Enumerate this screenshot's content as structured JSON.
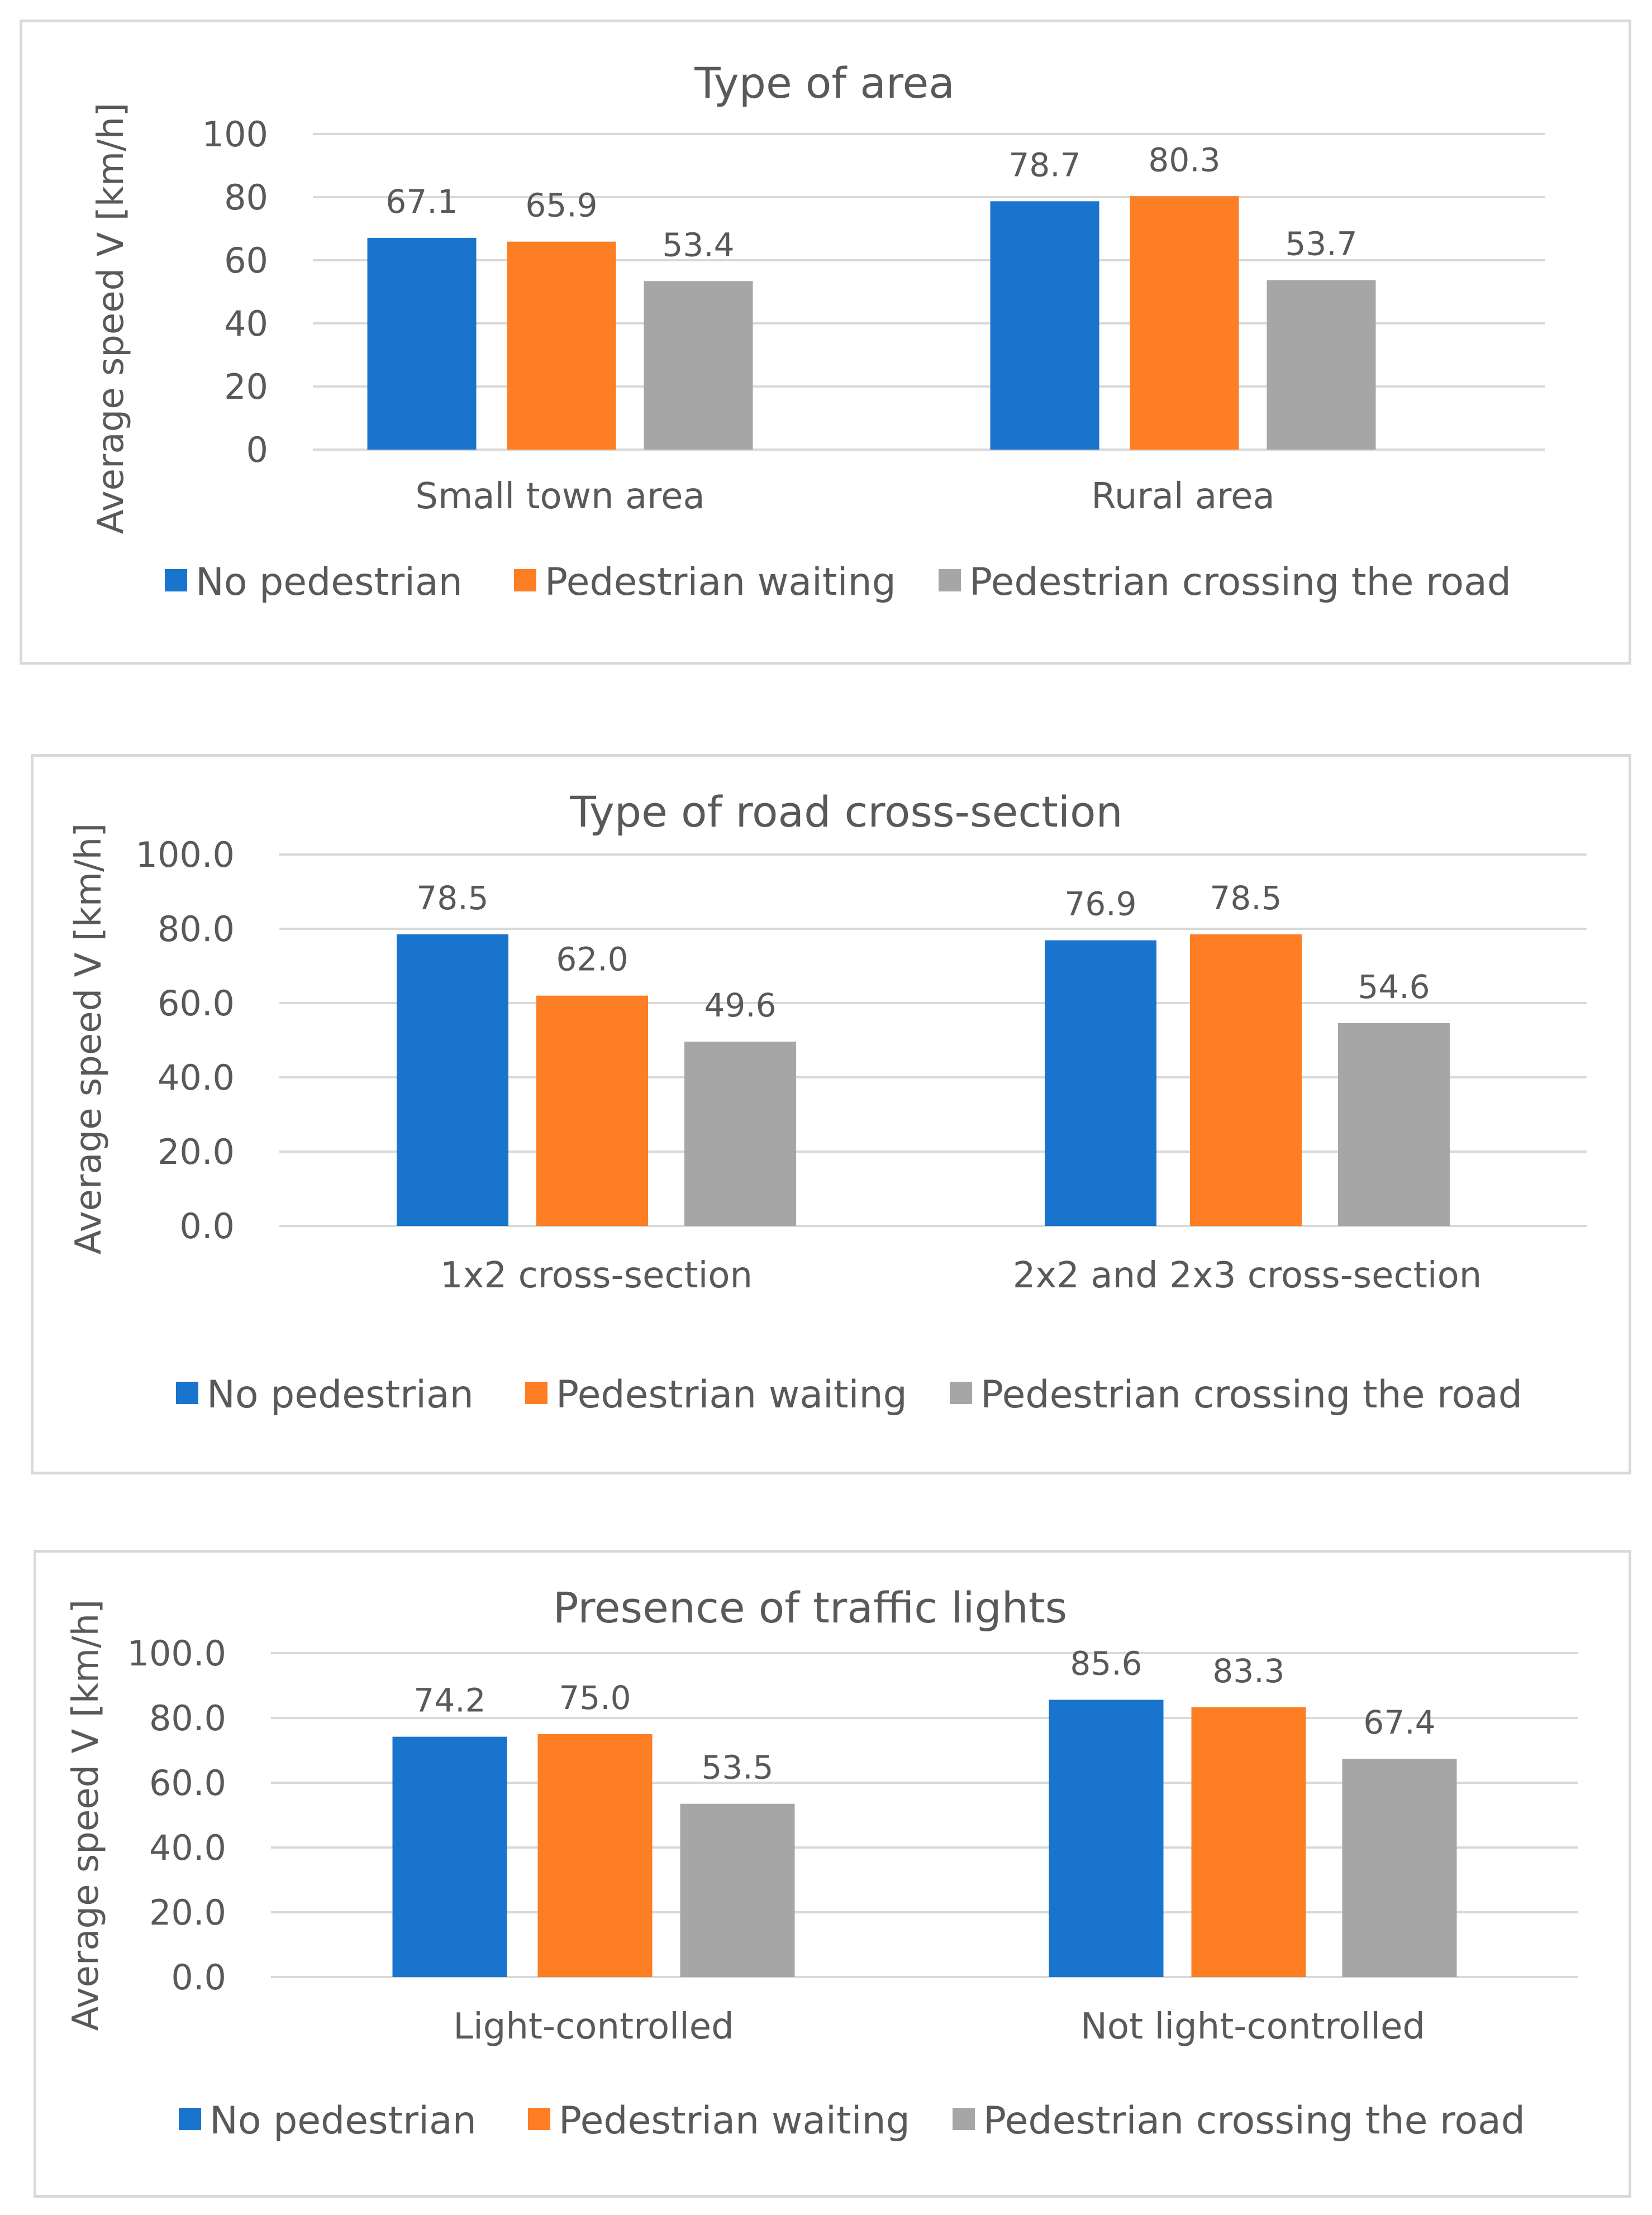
{
  "colors": {
    "No pedestrian": "#1874cd",
    "Pedestrian waiting": "#fd7e23",
    "Pedestrian crossing the road": "#a6a6a6",
    "grid": "#d9d9d9",
    "text": "#595959"
  },
  "chart_data": [
    {
      "type": "bar",
      "title": "Type of area",
      "ylabel": "Average speed V [km/h]",
      "xlabel": "",
      "ylim": [
        0,
        100
      ],
      "yticks": [
        "0",
        "20",
        "40",
        "60",
        "80",
        "100"
      ],
      "categories": [
        "Small town area",
        "Rural area"
      ],
      "series": [
        {
          "name": "No pedestrian",
          "values": [
            67.1,
            78.7
          ],
          "labels": [
            "67.1",
            "78.7"
          ]
        },
        {
          "name": "Pedestrian waiting",
          "values": [
            65.9,
            80.3
          ],
          "labels": [
            "65.9",
            "80.3"
          ]
        },
        {
          "name": "Pedestrian crossing the road",
          "values": [
            53.4,
            53.7
          ],
          "labels": [
            "53.4",
            "53.7"
          ]
        }
      ],
      "legend": "bottom"
    },
    {
      "type": "bar",
      "title": "Type of road cross-section",
      "ylabel": "Average speed V [km/h]",
      "xlabel": "",
      "ylim": [
        0,
        100
      ],
      "yticks": [
        "0.0",
        "20.0",
        "40.0",
        "60.0",
        "80.0",
        "100.0"
      ],
      "categories": [
        "1x2 cross-section",
        "2x2 and 2x3 cross-section"
      ],
      "series": [
        {
          "name": "No pedestrian",
          "values": [
            78.5,
            76.9
          ],
          "labels": [
            "78.5",
            "76.9"
          ]
        },
        {
          "name": "Pedestrian waiting",
          "values": [
            62.0,
            78.5
          ],
          "labels": [
            "62.0",
            "78.5"
          ]
        },
        {
          "name": "Pedestrian crossing the road",
          "values": [
            49.6,
            54.6
          ],
          "labels": [
            "49.6",
            "54.6"
          ]
        }
      ],
      "legend": "bottom"
    },
    {
      "type": "bar",
      "title": "Presence of traffic lights",
      "ylabel": "Average speed V [km/h]",
      "xlabel": "",
      "ylim": [
        0,
        100
      ],
      "yticks": [
        "0.0",
        "20.0",
        "40.0",
        "60.0",
        "80.0",
        "100.0"
      ],
      "categories": [
        "Light-controlled",
        "Not light-controlled"
      ],
      "series": [
        {
          "name": "No pedestrian",
          "values": [
            74.2,
            85.6
          ],
          "labels": [
            "74.2",
            "85.6"
          ]
        },
        {
          "name": "Pedestrian waiting",
          "values": [
            75.0,
            83.3
          ],
          "labels": [
            "75.0",
            "83.3"
          ]
        },
        {
          "name": "Pedestrian crossing the road",
          "values": [
            53.5,
            67.4
          ],
          "labels": [
            "53.5",
            "67.4"
          ]
        }
      ],
      "legend": "bottom"
    }
  ]
}
